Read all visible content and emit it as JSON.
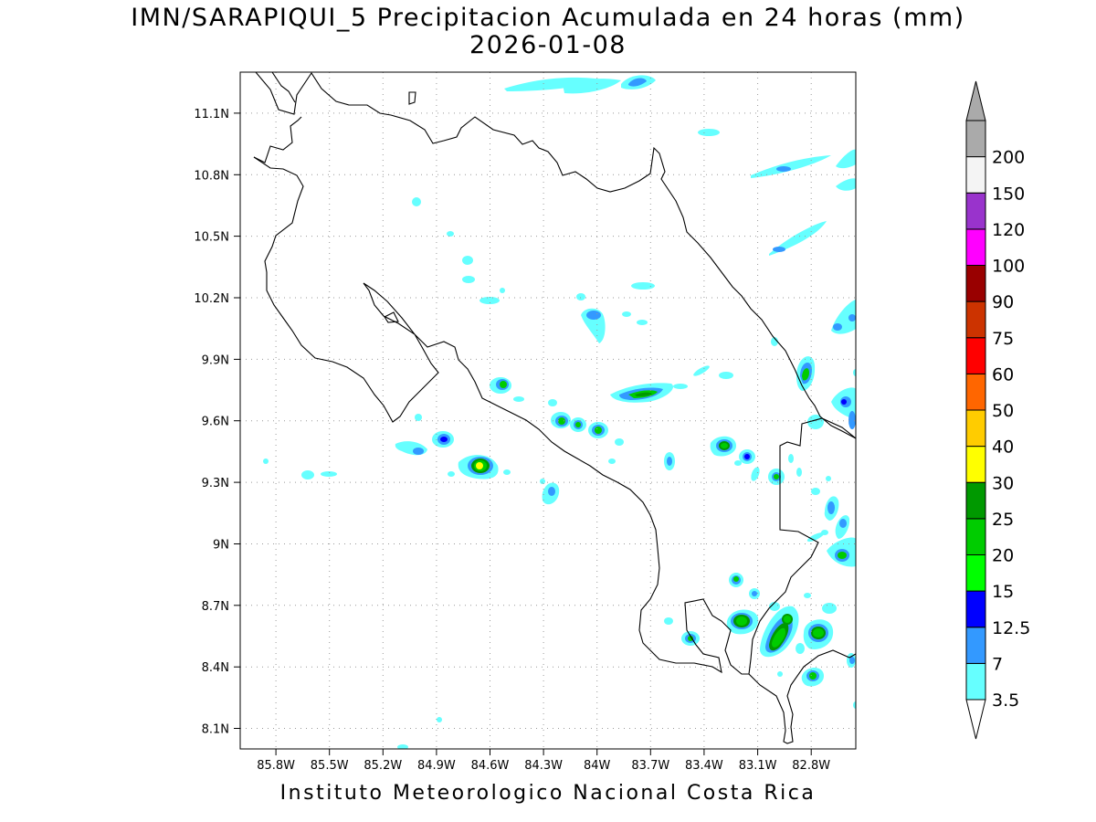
{
  "title": "IMN/SARAPIQUI_5 Precipitacion Acumulada en 24 horas (mm)",
  "date": "2026-01-08",
  "footer": "Instituto Meteorologico Nacional Costa Rica",
  "map": {
    "lon_range": [
      -86.0,
      -82.55
    ],
    "lat_range": [
      8.0,
      11.3
    ],
    "lon_ticks": [
      "85.8W",
      "85.5W",
      "85.2W",
      "84.9W",
      "84.6W",
      "84.3W",
      "84W",
      "83.7W",
      "83.4W",
      "83.1W",
      "82.8W"
    ],
    "lon_tick_values": [
      -85.8,
      -85.5,
      -85.2,
      -84.9,
      -84.6,
      -84.3,
      -84.0,
      -83.7,
      -83.4,
      -83.1,
      -82.8
    ],
    "lat_ticks": [
      "11.1N",
      "10.8N",
      "10.5N",
      "10.2N",
      "9.9N",
      "9.6N",
      "9.3N",
      "9N",
      "8.7N",
      "8.4N",
      "8.1N"
    ],
    "lat_tick_values": [
      11.1,
      10.8,
      10.5,
      10.2,
      9.9,
      9.6,
      9.3,
      9.0,
      8.7,
      8.4,
      8.1
    ],
    "grid": "dotted"
  },
  "colorbar": {
    "labels": [
      "3.5",
      "7",
      "12.5",
      "15",
      "20",
      "25",
      "30",
      "40",
      "50",
      "60",
      "75",
      "90",
      "100",
      "120",
      "150",
      "200"
    ],
    "colors": [
      "#66ffff",
      "#3399ff",
      "#0000ff",
      "#00ff00",
      "#00cc00",
      "#009900",
      "#ffff00",
      "#ffcc00",
      "#ff6600",
      "#ff0000",
      "#cc3300",
      "#990000",
      "#ff00ff",
      "#9933cc",
      "#f4f4f4",
      "#aaaaaa"
    ],
    "arrow_top_color": "#aaaaaa",
    "arrow_bottom_color": "#ffffff"
  }
}
